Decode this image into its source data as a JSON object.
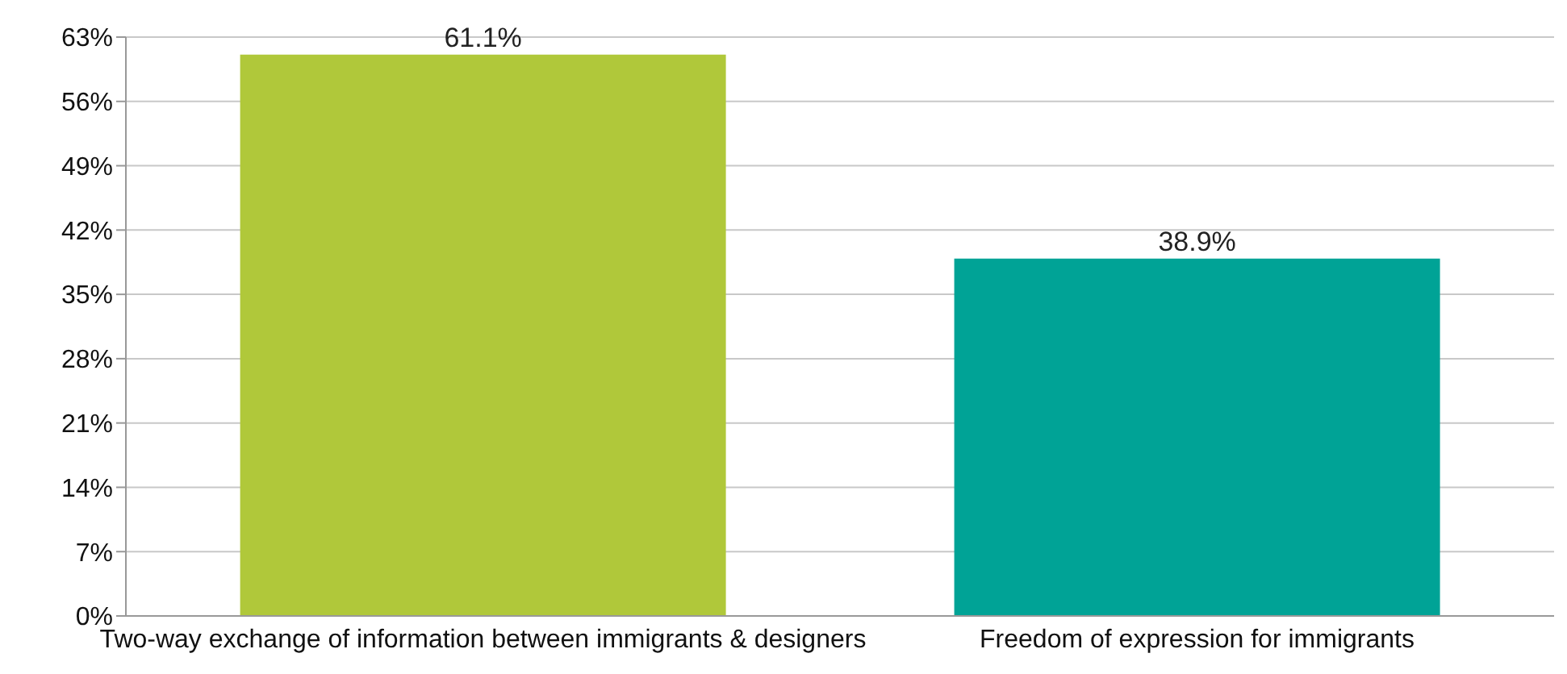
{
  "chart_data": {
    "type": "bar",
    "categories": [
      "Two-way exchange of information between immigrants & designers",
      "Freedom of expression for immigrants"
    ],
    "values": [
      61.1,
      38.9
    ],
    "colors": [
      "#b0c83a",
      "#00a396"
    ],
    "value_labels": [
      "61.1%",
      "38.9%"
    ],
    "ylim": [
      0,
      63
    ],
    "yticks": [
      {
        "value": 0,
        "label": "0%"
      },
      {
        "value": 7,
        "label": "7%"
      },
      {
        "value": 14,
        "label": "14%"
      },
      {
        "value": 21,
        "label": "21%"
      },
      {
        "value": 28,
        "label": "28%"
      },
      {
        "value": 35,
        "label": "35%"
      },
      {
        "value": 42,
        "label": "42%"
      },
      {
        "value": 49,
        "label": "49%"
      },
      {
        "value": 56,
        "label": "56%"
      },
      {
        "value": 63,
        "label": "63%"
      }
    ],
    "grid": "y"
  }
}
